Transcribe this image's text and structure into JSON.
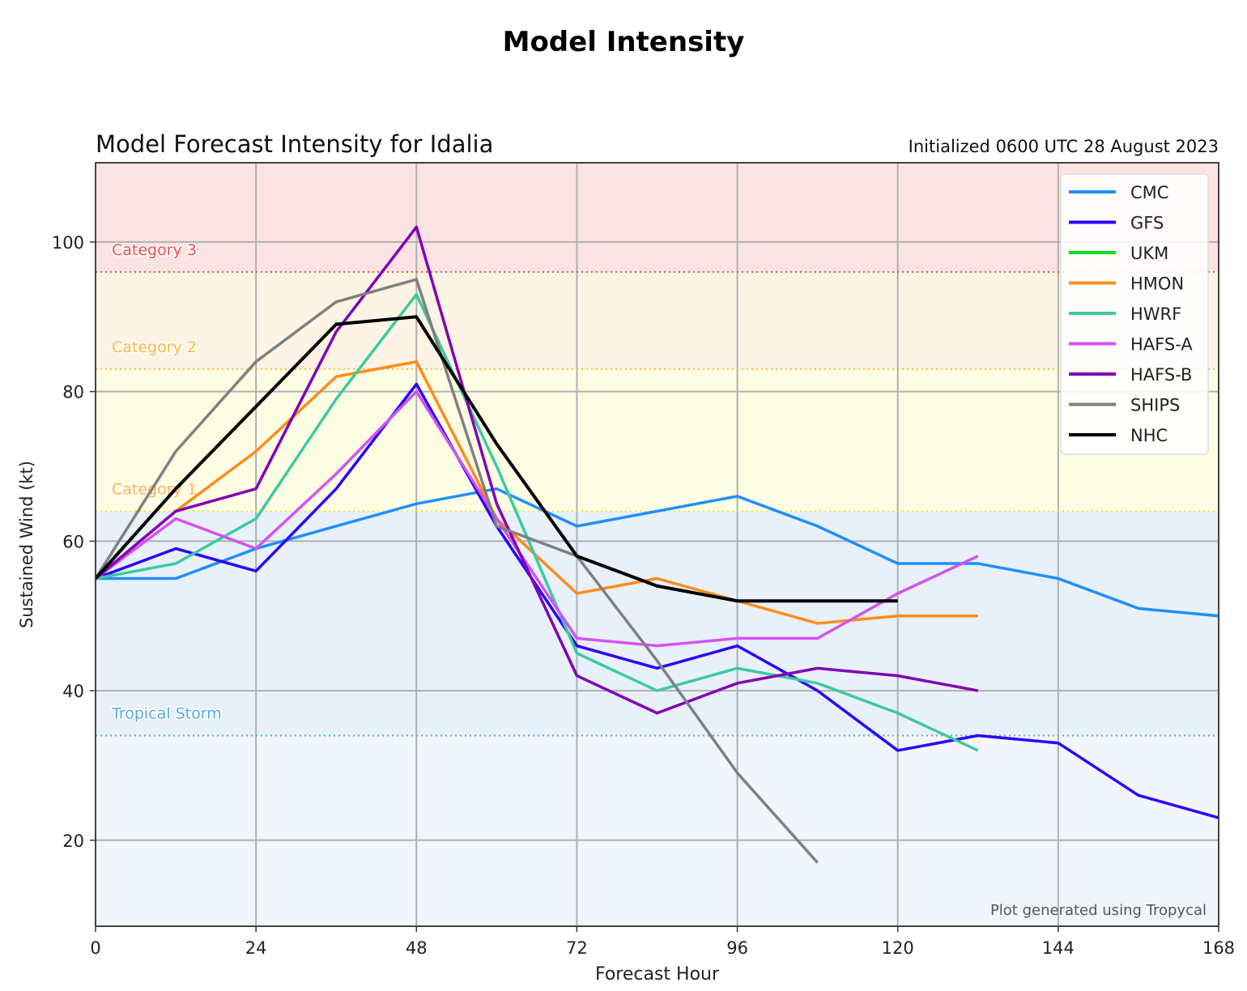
{
  "page_title": "Model Intensity",
  "chart_data": {
    "type": "line",
    "title": "Model Forecast Intensity for Idalia",
    "subtitle_right": "Initialized 0600 UTC 28 August 2023",
    "xlabel": "Forecast Hour",
    "ylabel": "Sustained Wind (kt)",
    "xlim": [
      0,
      168
    ],
    "ylim": [
      8.5,
      110.6
    ],
    "xticks": [
      0,
      24,
      48,
      72,
      96,
      120,
      144,
      168
    ],
    "yticks": [
      20,
      40,
      60,
      80,
      100
    ],
    "grid": true,
    "legend_position": "top-right",
    "footer": "Plot generated using Tropycal",
    "thresholds": [
      {
        "label": "Category 3",
        "value": 96,
        "color": "#f04a4a"
      },
      {
        "label": "Category 2",
        "value": 83,
        "color": "#ffb340"
      },
      {
        "label": "Category 1",
        "value": 64,
        "color": "#ffb340",
        "line_color": "#e8e840"
      },
      {
        "label": "Tropical Storm",
        "value": 34,
        "color": "#5aa8e8"
      }
    ],
    "bands": [
      {
        "from": 96,
        "to": 110.6,
        "color": "#fce3e3"
      },
      {
        "from": 83,
        "to": 96,
        "color": "#fdf4e6"
      },
      {
        "from": 64,
        "to": 83,
        "color": "#fdfde4"
      },
      {
        "from": 34,
        "to": 64,
        "color": "#e8f0fa"
      },
      {
        "from": 8.5,
        "to": 34,
        "color": "#f1f6fc"
      }
    ],
    "series": [
      {
        "name": "CMC",
        "color": "#1e8fff",
        "x": [
          0,
          12,
          24,
          36,
          48,
          60,
          72,
          84,
          96,
          108,
          120,
          132,
          144,
          156,
          168
        ],
        "y": [
          55,
          55,
          59,
          62,
          65,
          67,
          62,
          64,
          66,
          62,
          57,
          57,
          55,
          51,
          50
        ]
      },
      {
        "name": "GFS",
        "color": "#2b00ff",
        "x": [
          0,
          12,
          24,
          36,
          48,
          60,
          72,
          84,
          96,
          108,
          120,
          132,
          144,
          156,
          168
        ],
        "y": [
          55,
          59,
          56,
          67,
          81,
          62,
          46,
          43,
          46,
          40,
          32,
          34,
          33,
          26,
          23
        ]
      },
      {
        "name": "UKM",
        "color": "#00e020",
        "x": [],
        "y": []
      },
      {
        "name": "HMON",
        "color": "#ff8c1a",
        "x": [
          0,
          12,
          24,
          36,
          48,
          60,
          72,
          84,
          96,
          108,
          120,
          132
        ],
        "y": [
          55,
          64,
          72,
          82,
          84,
          63,
          53,
          55,
          52,
          49,
          50,
          50
        ]
      },
      {
        "name": "HWRF",
        "color": "#3ccaa0",
        "x": [
          0,
          12,
          24,
          36,
          48,
          60,
          72,
          84,
          96,
          108,
          120,
          132
        ],
        "y": [
          55,
          57,
          63,
          79,
          93,
          70,
          45,
          40,
          43,
          41,
          37,
          32
        ]
      },
      {
        "name": "HAFS-A",
        "color": "#d452f2",
        "x": [
          0,
          12,
          24,
          36,
          48,
          60,
          72,
          84,
          96,
          108,
          120,
          132
        ],
        "y": [
          55,
          63,
          59,
          69,
          80,
          63,
          47,
          46,
          47,
          47,
          53,
          58
        ]
      },
      {
        "name": "HAFS-B",
        "color": "#8200b4",
        "x": [
          0,
          12,
          24,
          36,
          48,
          60,
          72,
          84,
          96,
          108,
          120,
          132
        ],
        "y": [
          55,
          64,
          67,
          88,
          102,
          65,
          42,
          37,
          41,
          43,
          42,
          40
        ]
      },
      {
        "name": "SHIPS",
        "color": "#808080",
        "x": [
          0,
          12,
          24,
          36,
          48,
          60,
          72,
          84,
          96,
          108
        ],
        "y": [
          55,
          72,
          84,
          92,
          95,
          62,
          58,
          44,
          29,
          17
        ]
      },
      {
        "name": "NHC",
        "color": "#000000",
        "x": [
          0,
          12,
          24,
          36,
          48,
          60,
          72,
          84,
          96,
          120
        ],
        "y": [
          55,
          67,
          78,
          89,
          90,
          73,
          58,
          54,
          52,
          52
        ]
      }
    ]
  }
}
